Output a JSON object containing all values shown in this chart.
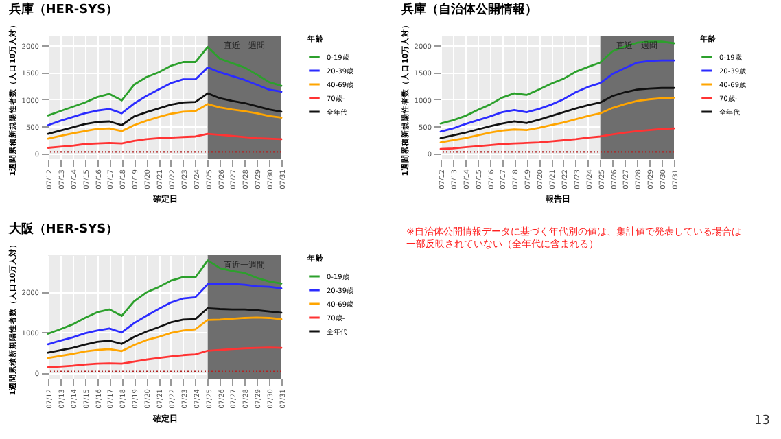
{
  "chart_data": [
    {
      "type": "line",
      "title": "兵庫（HER-SYS）",
      "xlabel": "確定日",
      "ylabel": "1週間累積新規陽性者数（人口10万人対）",
      "legend_title": "年齢",
      "legend": "right",
      "grid": true,
      "categories": [
        "07/12",
        "07/13",
        "07/14",
        "07/15",
        "07/16",
        "07/17",
        "07/18",
        "07/19",
        "07/20",
        "07/21",
        "07/22",
        "07/23",
        "07/24",
        "07/25",
        "07/26",
        "07/27",
        "07/28",
        "07/29",
        "07/30",
        "07/31"
      ],
      "ylim": [
        -110,
        2180
      ],
      "yticks": [
        0,
        500,
        1000,
        1500,
        2000
      ],
      "bands": [
        {
          "axis": "x",
          "from": "07/25",
          "to": "07/31",
          "label": "直近一週間",
          "color": "#6e6e6e"
        }
      ],
      "ref_lines": [
        {
          "axis": "y",
          "value": 25,
          "color": "#b22222",
          "line_style": "dotted"
        }
      ],
      "series": [
        {
          "name": "0-19歳",
          "color": "#2ca02c",
          "values": [
            700,
            780,
            860,
            940,
            1040,
            1100,
            980,
            1270,
            1410,
            1500,
            1620,
            1690,
            1690,
            1970,
            1750,
            1670,
            1590,
            1460,
            1320,
            1250
          ]
        },
        {
          "name": "20-39歳",
          "color": "#2b2bff",
          "values": [
            520,
            600,
            670,
            740,
            790,
            820,
            740,
            920,
            1060,
            1180,
            1300,
            1370,
            1370,
            1590,
            1500,
            1430,
            1360,
            1270,
            1180,
            1140
          ]
        },
        {
          "name": "40-69歳",
          "color": "#ffa500",
          "values": [
            270,
            320,
            370,
            410,
            450,
            460,
            410,
            520,
            600,
            670,
            730,
            770,
            780,
            910,
            850,
            810,
            780,
            740,
            690,
            660
          ]
        },
        {
          "name": "70歳-",
          "color": "#ff3333",
          "values": [
            100,
            120,
            140,
            170,
            180,
            190,
            180,
            230,
            260,
            280,
            290,
            300,
            310,
            360,
            340,
            320,
            300,
            280,
            270,
            260
          ]
        },
        {
          "name": "全年代",
          "color": "#111111",
          "values": [
            360,
            420,
            480,
            540,
            580,
            590,
            520,
            680,
            760,
            830,
            900,
            940,
            950,
            1110,
            1020,
            970,
            930,
            870,
            810,
            770
          ]
        }
      ]
    },
    {
      "type": "line",
      "title": "兵庫（自治体公開情報）",
      "xlabel": "報告日",
      "ylabel": "1週間累積新規陽性者数（人口10万人対）",
      "legend_title": "年齢",
      "legend": "right",
      "grid": true,
      "categories": [
        "07/12",
        "07/13",
        "07/14",
        "07/15",
        "07/16",
        "07/17",
        "07/18",
        "07/19",
        "07/20",
        "07/21",
        "07/22",
        "07/23",
        "07/24",
        "07/25",
        "07/26",
        "07/27",
        "07/28",
        "07/29",
        "07/30",
        "07/31"
      ],
      "ylim": [
        -110,
        2180
      ],
      "yticks": [
        0,
        500,
        1000,
        1500,
        2000
      ],
      "bands": [
        {
          "axis": "x",
          "from": "07/25",
          "to": "07/31",
          "label": "直近一週間",
          "color": "#6e6e6e"
        }
      ],
      "ref_lines": [
        {
          "axis": "y",
          "value": 25,
          "color": "#b22222",
          "line_style": "dotted"
        }
      ],
      "series": [
        {
          "name": "0-19歳",
          "color": "#2ca02c",
          "values": [
            550,
            610,
            690,
            800,
            900,
            1030,
            1110,
            1080,
            1180,
            1290,
            1380,
            1510,
            1600,
            1680,
            1890,
            1980,
            2050,
            2070,
            2070,
            2040
          ]
        },
        {
          "name": "20-39歳",
          "color": "#2b2bff",
          "values": [
            400,
            460,
            540,
            610,
            680,
            760,
            800,
            760,
            820,
            900,
            1000,
            1130,
            1230,
            1300,
            1470,
            1580,
            1680,
            1710,
            1720,
            1720
          ]
        },
        {
          "name": "40-69歳",
          "color": "#ffa500",
          "values": [
            200,
            240,
            280,
            330,
            380,
            420,
            440,
            430,
            470,
            520,
            570,
            630,
            690,
            740,
            840,
            910,
            970,
            1000,
            1020,
            1030
          ]
        },
        {
          "name": "70歳-",
          "color": "#ff3333",
          "values": [
            80,
            90,
            110,
            130,
            150,
            170,
            180,
            190,
            200,
            220,
            240,
            260,
            290,
            310,
            350,
            380,
            410,
            430,
            450,
            460
          ]
        },
        {
          "name": "全年代",
          "color": "#111111",
          "values": [
            280,
            330,
            380,
            440,
            500,
            550,
            590,
            560,
            620,
            690,
            760,
            830,
            890,
            940,
            1060,
            1130,
            1180,
            1200,
            1210,
            1210
          ]
        }
      ]
    },
    {
      "type": "line",
      "title": "大阪（HER-SYS）",
      "xlabel": "確定日",
      "ylabel": "1週間累積新規陽性者数（人口10万人対）",
      "legend_title": "年齢",
      "legend": "right",
      "grid": true,
      "categories": [
        "07/12",
        "07/13",
        "07/14",
        "07/15",
        "07/16",
        "07/17",
        "07/18",
        "07/19",
        "07/20",
        "07/21",
        "07/22",
        "07/23",
        "07/24",
        "07/25",
        "07/26",
        "07/27",
        "07/28",
        "07/29",
        "07/30",
        "07/31"
      ],
      "ylim": [
        -150,
        2900
      ],
      "yticks": [
        0,
        1000,
        2000
      ],
      "bands": [
        {
          "axis": "x",
          "from": "07/25",
          "to": "07/31",
          "label": "直近一週間",
          "color": "#6e6e6e"
        }
      ],
      "ref_lines": [
        {
          "axis": "y",
          "value": 25,
          "color": "#b22222",
          "line_style": "dotted"
        }
      ],
      "annotations": [
        "※自治体公開情報データに基づく年代別の値は、集計値で発表している場合は一部反映されていない（全年代に含まれる）",
        "13"
      ],
      "series": [
        {
          "name": "0-19歳",
          "color": "#2ca02c",
          "values": [
            960,
            1070,
            1190,
            1350,
            1490,
            1560,
            1400,
            1760,
            1980,
            2110,
            2270,
            2360,
            2350,
            2770,
            2580,
            2510,
            2460,
            2340,
            2250,
            2200
          ]
        },
        {
          "name": "20-39歳",
          "color": "#2b2bff",
          "values": [
            700,
            790,
            870,
            970,
            1040,
            1090,
            990,
            1220,
            1400,
            1570,
            1730,
            1830,
            1860,
            2180,
            2200,
            2190,
            2170,
            2130,
            2120,
            2080
          ]
        },
        {
          "name": "40-69歳",
          "color": "#ffa500",
          "values": [
            360,
            410,
            460,
            520,
            560,
            580,
            530,
            680,
            800,
            880,
            980,
            1040,
            1070,
            1300,
            1310,
            1330,
            1350,
            1360,
            1350,
            1320
          ]
        },
        {
          "name": "70歳-",
          "color": "#ff3333",
          "values": [
            130,
            150,
            170,
            200,
            220,
            230,
            220,
            270,
            320,
            360,
            400,
            430,
            450,
            540,
            560,
            580,
            600,
            610,
            620,
            610
          ]
        },
        {
          "name": "全年代",
          "color": "#111111",
          "values": [
            490,
            550,
            610,
            690,
            760,
            790,
            710,
            880,
            1010,
            1120,
            1240,
            1310,
            1320,
            1590,
            1570,
            1560,
            1560,
            1540,
            1510,
            1480
          ]
        }
      ]
    }
  ]
}
